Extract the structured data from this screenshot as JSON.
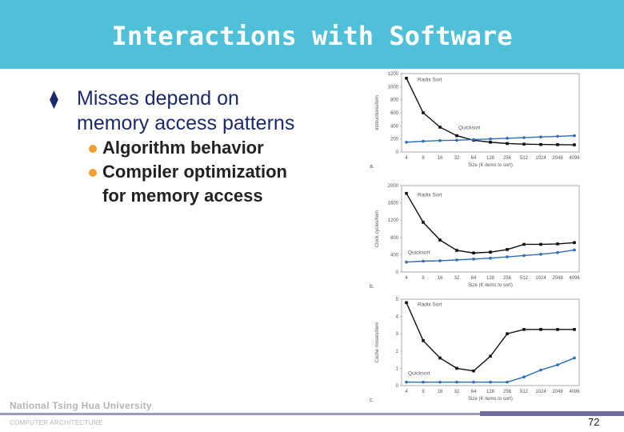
{
  "title": "Interactions with Software",
  "bullet": {
    "marker": "⧫",
    "text_line1": "Misses depend on",
    "text_line2": "memory access patterns"
  },
  "subbullets": [
    {
      "lines": [
        "Algorithm behavior"
      ]
    },
    {
      "lines": [
        "Compiler optimization",
        "for memory access"
      ]
    }
  ],
  "footer": {
    "university": "National  Tsing  Hua  University",
    "department": "COMPUTER    ARCHITECTURE",
    "page_number": "72"
  },
  "colors": {
    "title_bar": "#4fc0d8",
    "radix": "#111111",
    "quick": "#2e6db4"
  },
  "chart_data": [
    {
      "type": "line",
      "panel_label": "a.",
      "ylabel": "Instructions/item",
      "xlabel": "Size (K items to sort)",
      "categories": [
        "4",
        "8",
        "16",
        "32",
        "64",
        "128",
        "256",
        "512",
        "1024",
        "2048",
        "4096"
      ],
      "yticks": [
        "0",
        "200",
        "400",
        "600",
        "800",
        "1000",
        "1200"
      ],
      "ylim": [
        0,
        1200
      ],
      "series": [
        {
          "name": "Radix Sort",
          "values": [
            1130,
            600,
            380,
            250,
            180,
            150,
            130,
            120,
            115,
            112,
            110
          ]
        },
        {
          "name": "Quicksort",
          "values": [
            150,
            165,
            175,
            180,
            190,
            200,
            210,
            220,
            230,
            240,
            250
          ]
        }
      ]
    },
    {
      "type": "line",
      "panel_label": "b.",
      "ylabel": "Clock cycles/item",
      "xlabel": "Size (K items to sort)",
      "categories": [
        "4",
        "8",
        "16",
        "32",
        "64",
        "128",
        "256",
        "512",
        "1024",
        "2048",
        "4096"
      ],
      "yticks": [
        "0",
        "400",
        "800",
        "1200",
        "1600",
        "2000"
      ],
      "ylim": [
        0,
        2000
      ],
      "series": [
        {
          "name": "Radix Sort",
          "values": [
            1820,
            1150,
            740,
            500,
            440,
            460,
            520,
            640,
            640,
            650,
            680
          ]
        },
        {
          "name": "Quicksort",
          "values": [
            230,
            250,
            260,
            280,
            300,
            320,
            350,
            380,
            410,
            450,
            510
          ]
        }
      ]
    },
    {
      "type": "line",
      "panel_label": "c.",
      "ylabel": "Cache misses/item",
      "xlabel": "Size (K items to sort)",
      "categories": [
        "4",
        "8",
        "16",
        "32",
        "64",
        "128",
        "256",
        "512",
        "1024",
        "2048",
        "4096"
      ],
      "yticks": [
        "0",
        "1",
        "2",
        "3",
        "4",
        "5"
      ],
      "ylim": [
        0,
        5
      ],
      "series": [
        {
          "name": "Radix Sort",
          "values": [
            4.8,
            2.6,
            1.6,
            1.0,
            0.85,
            1.7,
            3.0,
            3.25,
            3.25,
            3.25,
            3.25
          ]
        },
        {
          "name": "Quicksort",
          "values": [
            0.2,
            0.2,
            0.2,
            0.2,
            0.2,
            0.2,
            0.2,
            0.5,
            0.9,
            1.2,
            1.6
          ]
        }
      ]
    }
  ]
}
